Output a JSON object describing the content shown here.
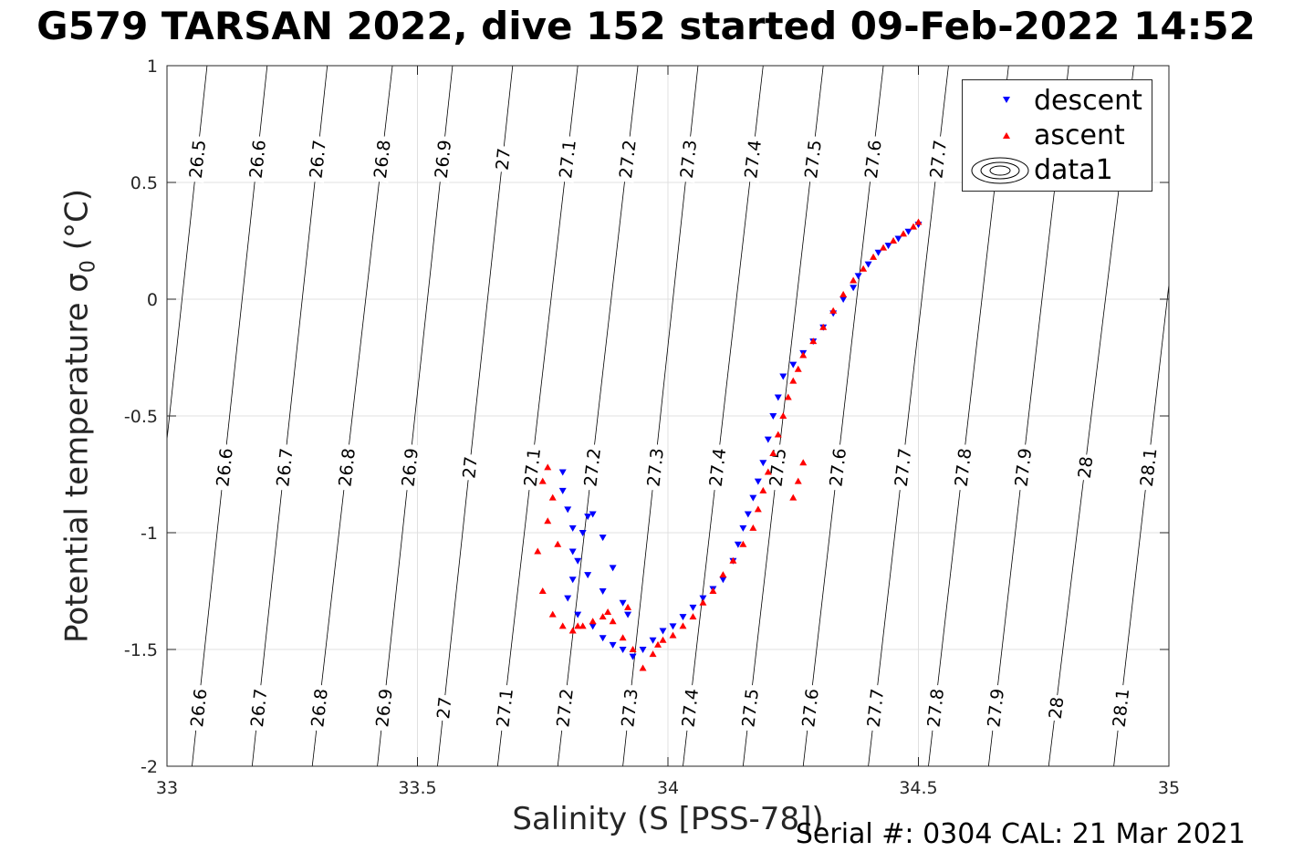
{
  "title": "G579 TARSAN 2022, dive 152 started 09-Feb-2022 14:52",
  "footer": "Serial #: 0304  CAL: 21 Mar 2021",
  "colors": {
    "descent": "#0000ff",
    "ascent": "#ff0000",
    "isopycnal": "#000000",
    "grid": "#e0e0e0",
    "axis": "#262626"
  },
  "chart_data": {
    "type": "scatter",
    "title": "G579 TARSAN 2022, dive 152 started 09-Feb-2022 14:52",
    "xlabel": "Salinity (S [PSS-78])",
    "ylabel_main": "Potential temperature ",
    "ylabel_sym": "σ",
    "ylabel_sub": "0",
    "ylabel_unit": " (°C)",
    "xlim": [
      33,
      35
    ],
    "ylim": [
      -2,
      1
    ],
    "xticks": [
      "33",
      "33.5",
      "34",
      "34.5",
      "35"
    ],
    "xtick_values": [
      33,
      33.5,
      34,
      34.5,
      35
    ],
    "yticks": [
      "-2",
      "-1.5",
      "-1",
      "-0.5",
      "0",
      "0.5",
      "1"
    ],
    "ytick_values": [
      -2,
      -1.5,
      -1,
      -0.5,
      0,
      0.5,
      1
    ],
    "grid": true,
    "legend_position": "top-right",
    "legend": [
      "descent",
      "ascent",
      "data1"
    ],
    "isopycnals": [
      {
        "sigma": "26.5",
        "bottom_s": 32.93,
        "top_s": 33.08
      },
      {
        "sigma": "26.6",
        "bottom_s": 33.05,
        "top_s": 33.2
      },
      {
        "sigma": "26.7",
        "bottom_s": 33.17,
        "top_s": 33.32
      },
      {
        "sigma": "26.8",
        "bottom_s": 33.29,
        "top_s": 33.45
      },
      {
        "sigma": "26.9",
        "bottom_s": 33.42,
        "top_s": 33.57
      },
      {
        "sigma": "27",
        "bottom_s": 33.54,
        "top_s": 33.69
      },
      {
        "sigma": "27.1",
        "bottom_s": 33.66,
        "top_s": 33.82
      },
      {
        "sigma": "27.2",
        "bottom_s": 33.78,
        "top_s": 33.94
      },
      {
        "sigma": "27.3",
        "bottom_s": 33.91,
        "top_s": 34.06
      },
      {
        "sigma": "27.4",
        "bottom_s": 34.03,
        "top_s": 34.19
      },
      {
        "sigma": "27.5",
        "bottom_s": 34.15,
        "top_s": 34.31
      },
      {
        "sigma": "27.6",
        "bottom_s": 34.27,
        "top_s": 34.43
      },
      {
        "sigma": "27.7",
        "bottom_s": 34.4,
        "top_s": 34.56
      },
      {
        "sigma": "27.8",
        "bottom_s": 34.52,
        "top_s": 34.68
      },
      {
        "sigma": "27.9",
        "bottom_s": 34.64,
        "top_s": 34.8
      },
      {
        "sigma": "28",
        "bottom_s": 34.76,
        "top_s": 34.93
      },
      {
        "sigma": "28.1",
        "bottom_s": 34.89,
        "top_s": 35.05
      }
    ],
    "series": [
      {
        "name": "descent",
        "marker": "triangle-down",
        "x": [
          33.79,
          33.79,
          33.8,
          33.81,
          33.81,
          33.83,
          33.84,
          33.85,
          33.87,
          33.89,
          33.91,
          33.92,
          33.87,
          33.84,
          33.82,
          33.81,
          33.8,
          33.82,
          33.85,
          33.87,
          33.89,
          33.91,
          33.93,
          33.95,
          33.97,
          33.99,
          34.01,
          34.03,
          34.05,
          34.07,
          34.09,
          34.11,
          34.13,
          34.14,
          34.15,
          34.16,
          34.17,
          34.18,
          34.19,
          34.2,
          34.21,
          34.22,
          34.23,
          34.25,
          34.27,
          34.29,
          34.31,
          34.33,
          34.35,
          34.37,
          34.38,
          34.4,
          34.42,
          34.44,
          34.46,
          34.48,
          34.5
        ],
        "y": [
          -0.74,
          -0.82,
          -0.9,
          -0.98,
          -1.08,
          -1.0,
          -0.93,
          -0.92,
          -1.02,
          -1.15,
          -1.3,
          -1.35,
          -1.25,
          -1.18,
          -1.12,
          -1.2,
          -1.28,
          -1.35,
          -1.4,
          -1.45,
          -1.48,
          -1.5,
          -1.53,
          -1.5,
          -1.46,
          -1.42,
          -1.4,
          -1.36,
          -1.32,
          -1.28,
          -1.24,
          -1.2,
          -1.12,
          -1.05,
          -0.98,
          -0.92,
          -0.85,
          -0.78,
          -0.7,
          -0.6,
          -0.5,
          -0.42,
          -0.33,
          -0.28,
          -0.23,
          -0.18,
          -0.12,
          -0.06,
          0.0,
          0.05,
          0.1,
          0.15,
          0.2,
          0.23,
          0.26,
          0.29,
          0.32
        ]
      },
      {
        "name": "ascent",
        "marker": "triangle-up",
        "x": [
          33.76,
          33.75,
          33.77,
          33.76,
          33.78,
          33.75,
          33.77,
          33.79,
          33.81,
          33.83,
          33.85,
          33.87,
          33.89,
          33.91,
          33.93,
          33.95,
          33.97,
          33.98,
          33.99,
          34.01,
          34.03,
          34.05,
          34.07,
          34.09,
          34.11,
          34.13,
          34.15,
          34.17,
          34.18,
          34.19,
          34.2,
          34.21,
          34.22,
          34.23,
          34.24,
          34.25,
          34.26,
          34.27,
          34.26,
          34.25,
          34.27,
          34.29,
          34.31,
          34.33,
          34.35,
          34.37,
          34.39,
          34.41,
          34.43,
          34.45,
          34.47,
          34.49,
          34.5,
          33.74,
          33.82,
          33.88,
          33.92
        ],
        "y": [
          -0.72,
          -0.78,
          -0.85,
          -0.95,
          -1.05,
          -1.25,
          -1.35,
          -1.4,
          -1.42,
          -1.4,
          -1.38,
          -1.36,
          -1.38,
          -1.45,
          -1.5,
          -1.58,
          -1.52,
          -1.48,
          -1.46,
          -1.44,
          -1.4,
          -1.36,
          -1.3,
          -1.25,
          -1.18,
          -1.12,
          -1.05,
          -0.98,
          -0.9,
          -0.82,
          -0.74,
          -0.66,
          -0.58,
          -0.5,
          -0.42,
          -0.35,
          -0.3,
          -0.24,
          -0.78,
          -0.85,
          -0.7,
          -0.18,
          -0.12,
          -0.05,
          0.02,
          0.08,
          0.13,
          0.18,
          0.22,
          0.25,
          0.28,
          0.31,
          0.33,
          -1.08,
          -1.4,
          -1.34,
          -1.32
        ]
      }
    ]
  }
}
